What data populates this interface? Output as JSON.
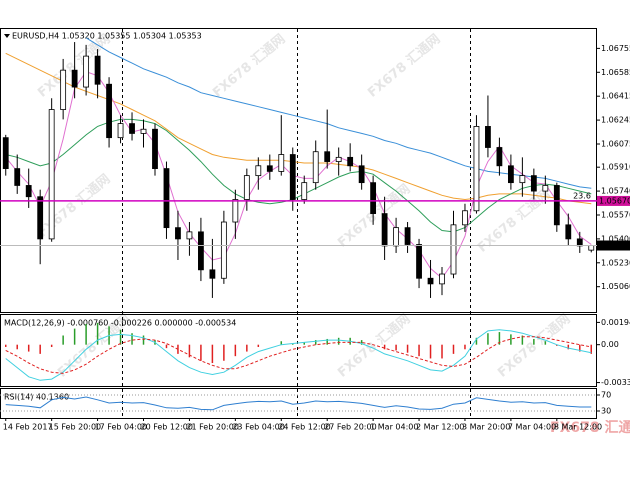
{
  "chart_data": [
    {
      "type": "candlestick",
      "title": "EURUSD,H4  1.05320 1.05355 1.05304 1.05353",
      "categories": [
        "14 Feb 2017",
        null,
        null,
        null,
        "15 Feb 20:00",
        null,
        null,
        null,
        "17 Feb 04:00",
        null,
        null,
        null,
        "20 Feb 12:00",
        null,
        null,
        null,
        "21 Feb 20:00",
        null,
        null,
        null,
        "23 Feb 04:00",
        null,
        null,
        null,
        "24 Feb 12:00",
        null,
        null,
        null,
        "27 Feb 20:00",
        null,
        null,
        null,
        "1 Mar 04:00",
        null,
        null,
        null,
        "2 Mar 12:00",
        null,
        null,
        null,
        "3 Mar 20:00",
        null,
        null,
        null,
        "7 Mar 04:00",
        null,
        null,
        null,
        "8 Mar 12:00",
        null,
        null,
        null
      ],
      "open": [
        1.0612,
        1.059,
        1.0578,
        1.057,
        1.054,
        1.0632,
        1.066,
        1.0648,
        1.067,
        1.065,
        1.0612,
        1.0622,
        1.0615,
        1.0618,
        1.059,
        1.0548,
        1.054,
        1.0545,
        1.0518,
        1.0512,
        1.0552,
        1.0568,
        1.0585,
        1.0592,
        1.0588,
        1.06,
        1.0568,
        1.058,
        1.0602,
        1.0595,
        1.0598,
        1.0592,
        1.058,
        1.0558,
        1.0535,
        1.0548,
        1.0536,
        1.0512,
        1.0508,
        1.0515,
        1.055,
        1.056,
        1.062,
        1.0605,
        1.0592,
        1.058,
        1.0585,
        1.0574,
        1.0578,
        1.055,
        1.054,
        1.0532
      ],
      "high": [
        1.0614,
        1.06,
        1.059,
        1.0575,
        1.064,
        1.0668,
        1.068,
        1.0678,
        1.0675,
        1.0655,
        1.0628,
        1.063,
        1.0625,
        1.0622,
        1.0595,
        1.056,
        1.0552,
        1.0555,
        1.054,
        1.056,
        1.0575,
        1.059,
        1.0598,
        1.06,
        1.0628,
        1.0605,
        1.0585,
        1.061,
        1.0632,
        1.0605,
        1.0608,
        1.06,
        1.0585,
        1.057,
        1.0555,
        1.0552,
        1.054,
        1.0525,
        1.052,
        1.056,
        1.0565,
        1.0628,
        1.0642,
        1.0612,
        1.06,
        1.0598,
        1.059,
        1.0585,
        1.058,
        1.0558,
        1.0545,
        1.05355
      ],
      "low": [
        1.0585,
        1.0572,
        1.0562,
        1.0522,
        1.0538,
        1.0625,
        1.064,
        1.0642,
        1.064,
        1.0605,
        1.0608,
        1.061,
        1.0605,
        1.0585,
        1.054,
        1.0525,
        1.0528,
        1.051,
        1.0498,
        1.0508,
        1.054,
        1.056,
        1.0575,
        1.0582,
        1.0585,
        1.056,
        1.0565,
        1.0575,
        1.059,
        1.0585,
        1.0588,
        1.0575,
        1.055,
        1.0525,
        1.053,
        1.053,
        1.0505,
        1.0498,
        1.05,
        1.0512,
        1.0545,
        1.0558,
        1.0598,
        1.0585,
        1.0575,
        1.057,
        1.0568,
        1.0565,
        1.0545,
        1.0535,
        1.053,
        1.05304
      ],
      "close": [
        1.059,
        1.0578,
        1.057,
        1.054,
        1.0632,
        1.066,
        1.0648,
        1.067,
        1.065,
        1.0612,
        1.0622,
        1.0615,
        1.0618,
        1.059,
        1.0548,
        1.054,
        1.0545,
        1.0518,
        1.0512,
        1.0552,
        1.0568,
        1.0585,
        1.0592,
        1.0588,
        1.06,
        1.0568,
        1.058,
        1.0602,
        1.0595,
        1.0598,
        1.0592,
        1.058,
        1.0558,
        1.0535,
        1.0548,
        1.0536,
        1.0512,
        1.0508,
        1.0515,
        1.055,
        1.056,
        1.062,
        1.0605,
        1.0592,
        1.058,
        1.0585,
        1.0574,
        1.0578,
        1.055,
        1.054,
        1.0535,
        1.05353
      ],
      "up_color": "#ffffff",
      "down_color": "#000000",
      "wick_color": "#000000",
      "series": [
        {
          "color": "#3a8fd8",
          "values": [
            null,
            null,
            null,
            null,
            null,
            null,
            null,
            1.0683,
            1.0678,
            1.0673,
            1.0669,
            1.0665,
            1.0661,
            1.0658,
            1.0655,
            1.0651,
            1.0648,
            1.0644,
            1.0642,
            1.064,
            1.0638,
            1.0636,
            1.0634,
            1.0632,
            1.063,
            1.0628,
            1.0626,
            1.0624,
            1.0622,
            1.0619,
            1.0617,
            1.0615,
            1.0613,
            1.061,
            1.0608,
            1.0605,
            1.0603,
            1.0601,
            1.0598,
            1.0595,
            1.0592,
            1.059,
            1.0588,
            1.0587,
            1.0586,
            1.0585,
            1.0584,
            1.0583,
            1.0581,
            1.0579,
            1.0577,
            1.0576
          ]
        },
        {
          "color": "#f0a030",
          "values": [
            1.0672,
            1.0668,
            1.0664,
            1.066,
            1.0656,
            1.0652,
            1.0648,
            1.0645,
            1.0642,
            1.0639,
            1.0636,
            1.0632,
            1.0628,
            1.0624,
            1.0618,
            1.0612,
            1.0608,
            1.0604,
            1.06,
            1.0598,
            1.0597,
            1.0596,
            1.0596,
            1.0596,
            1.0596,
            1.0595,
            1.0594,
            1.0594,
            1.0594,
            1.0593,
            1.0592,
            1.0591,
            1.0589,
            1.0586,
            1.0583,
            1.058,
            1.0577,
            1.0574,
            1.0571,
            1.0569,
            1.0568,
            1.0569,
            1.0571,
            1.0572,
            1.0572,
            1.0572,
            1.0571,
            1.057,
            1.0569,
            1.0567,
            1.0566,
            1.0565
          ]
        },
        {
          "color": "#2e9e5a",
          "values": [
            1.06,
            1.0598,
            1.0595,
            1.0592,
            1.0594,
            1.06,
            1.0607,
            1.0614,
            1.062,
            1.0623,
            1.0625,
            1.0625,
            1.0624,
            1.0622,
            1.0617,
            1.061,
            1.0603,
            1.0595,
            1.0586,
            1.0578,
            1.0572,
            1.0568,
            1.0566,
            1.0565,
            1.0566,
            1.0568,
            1.0572,
            1.0576,
            1.058,
            1.0584,
            1.0587,
            1.0588,
            1.0586,
            1.058,
            1.0574,
            1.0567,
            1.056,
            1.0552,
            1.0546,
            1.0545,
            1.0548,
            1.0555,
            1.0562,
            1.0568,
            1.0572,
            1.0576,
            1.0578,
            1.0579,
            1.0578,
            1.0576,
            1.0574,
            1.0572
          ]
        },
        {
          "color": "#e070d0",
          "values": [
            1.0598,
            1.0588,
            1.0579,
            1.0563,
            1.0581,
            1.0611,
            1.0647,
            1.0659,
            1.0656,
            1.0644,
            1.0628,
            1.0616,
            1.0618,
            1.0608,
            1.0585,
            1.0559,
            1.0544,
            1.0534,
            1.0525,
            1.0527,
            1.0544,
            1.0568,
            1.0582,
            1.0588,
            1.0593,
            1.0585,
            1.0583,
            1.0583,
            1.0592,
            1.0598,
            1.0595,
            1.059,
            1.0577,
            1.0558,
            1.0547,
            1.054,
            1.0532,
            1.0519,
            1.0512,
            1.0524,
            1.0542,
            1.0577,
            1.0595,
            1.0606,
            1.0592,
            1.0586,
            1.058,
            1.0579,
            1.0567,
            1.0556,
            1.0542,
            1.0536
          ]
        }
      ],
      "ylim": [
        1.0488,
        1.069
      ],
      "yticks": [
        1.06755,
        1.06585,
        1.06415,
        1.06245,
        1.06075,
        {
          "value": 1.0591,
          "label": "1.05910"
        },
        {
          "value": 1.0574,
          "label": "1.05740"
        },
        {
          "value": 1.0557,
          "label": "1.05570"
        },
        {
          "value": 1.054,
          "label": "1.05400"
        },
        {
          "value": 1.0523,
          "label": "1.05230"
        },
        {
          "value": 1.0506,
          "label": "1.05060"
        }
      ],
      "fib_line": {
        "label": "23.6",
        "y": 1.0567,
        "color": "#d000c0"
      },
      "price_markers": [
        {
          "value": 1.0567,
          "label": "1.05670",
          "color": "#d0109a"
        },
        {
          "value": 1.05353,
          "label": "1.05353",
          "color": "#000000"
        }
      ]
    },
    {
      "type": "macd",
      "title": "MACD(12,26,9) -0.000760 -0.000226 0.000000 -0.000534",
      "values": [
        -0.0002,
        -0.0004,
        -0.0006,
        -0.0008,
        -0.0002,
        0.0008,
        0.0014,
        0.0018,
        0.0019,
        0.0016,
        0.0013,
        0.001,
        0.0008,
        0.0004,
        -0.0003,
        -0.0008,
        -0.0011,
        -0.0014,
        -0.0016,
        -0.0014,
        -0.001,
        -0.0006,
        -0.0002,
        0.0,
        0.0003,
        0.0001,
        0.0002,
        0.0004,
        0.0005,
        0.0006,
        0.0006,
        0.0004,
        0.0,
        -0.0004,
        -0.0005,
        -0.0007,
        -0.001,
        -0.0012,
        -0.0012,
        -0.0008,
        -0.0004,
        0.0006,
        0.001,
        0.0011,
        0.0009,
        0.0008,
        0.0005,
        0.0003,
        -0.0001,
        -0.0004,
        -0.0006,
        -0.0008
      ],
      "positive_color": "#2a9d2a",
      "negative_color": "#e02020",
      "series": [
        {
          "color": "#40d0e0",
          "style": "solid",
          "values": [
            -0.0012,
            -0.002,
            -0.0028,
            -0.0031,
            -0.003,
            -0.0024,
            -0.0014,
            -0.0004,
            0.0004,
            0.0008,
            0.0009,
            0.0008,
            0.0006,
            0.0002,
            -0.0006,
            -0.0014,
            -0.002,
            -0.0024,
            -0.0026,
            -0.0024,
            -0.0018,
            -0.0011,
            -0.0006,
            -0.0003,
            0.0,
            0.0001,
            0.0002,
            0.0003,
            0.0004,
            0.0004,
            0.0003,
            0.0001,
            -0.0003,
            -0.0008,
            -0.0011,
            -0.0014,
            -0.0018,
            -0.0022,
            -0.0023,
            -0.0018,
            -0.001,
            0.0005,
            0.0012,
            0.0013,
            0.0012,
            0.001,
            0.0007,
            0.0004,
            0.0,
            -0.0003,
            -0.0005,
            -0.0007
          ]
        },
        {
          "color": "#e02020",
          "style": "dashed",
          "values": [
            -0.0005,
            -0.001,
            -0.0016,
            -0.0021,
            -0.0024,
            -0.0025,
            -0.0022,
            -0.0017,
            -0.001,
            -0.0004,
            0.0001,
            0.0004,
            0.0005,
            0.0004,
            0.0001,
            -0.0004,
            -0.0009,
            -0.0014,
            -0.0018,
            -0.0021,
            -0.0021,
            -0.0018,
            -0.0014,
            -0.001,
            -0.0007,
            -0.0004,
            -0.0002,
            0.0,
            0.0001,
            0.0002,
            0.0002,
            0.0002,
            0.0,
            -0.0003,
            -0.0006,
            -0.0009,
            -0.0012,
            -0.0015,
            -0.0018,
            -0.0019,
            -0.0017,
            -0.0011,
            -0.0004,
            0.0002,
            0.0005,
            0.0007,
            0.0007,
            0.0006,
            0.0004,
            0.0002,
            0.0,
            -0.0002
          ]
        }
      ],
      "ylim": [
        -0.0036,
        0.0025
      ],
      "yticks": [
        0.001942,
        {
          "value": 0,
          "label": "0.00"
        },
        -0.003301
      ]
    },
    {
      "type": "line",
      "title": "RSI(14) 40.1360",
      "series": [
        {
          "color": "#2f7fd0",
          "style": "solid",
          "values": [
            46,
            44,
            42,
            38,
            58,
            64,
            60,
            65,
            58,
            50,
            52,
            50,
            51,
            45,
            38,
            37,
            39,
            34,
            33,
            44,
            48,
            52,
            54,
            53,
            55,
            47,
            50,
            55,
            53,
            54,
            52,
            49,
            44,
            39,
            43,
            40,
            35,
            34,
            37,
            47,
            50,
            63,
            59,
            55,
            52,
            53,
            50,
            51,
            44,
            42,
            40,
            40
          ]
        }
      ],
      "ylim": [
        12.5,
        82.5
      ],
      "yticks": [
        70,
        30
      ],
      "grid": true
    }
  ],
  "watermark": "FX678 汇通网"
}
